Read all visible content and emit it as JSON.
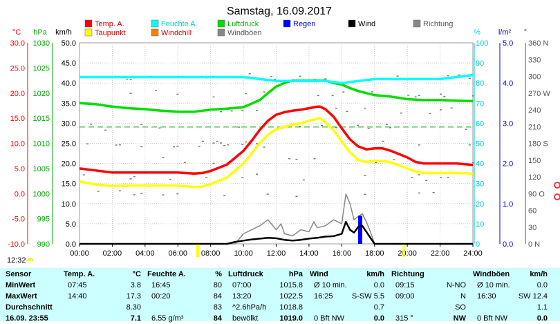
{
  "chart_data": {
    "type": "line",
    "title": "Samstag, 16.09.2017",
    "x_ticks": [
      "00:00",
      "02:00",
      "04:00",
      "06:00",
      "08:00",
      "10:00",
      "12:00",
      "14:00",
      "16:00",
      "18:00",
      "20:00",
      "22:00",
      "24:00"
    ],
    "axes": {
      "temp": {
        "unit": "°C",
        "color": "#ff0000",
        "min": -10,
        "max": 30,
        "ticks": [
          "-10.0",
          "-5.0",
          "0.0",
          "5.0",
          "10.0",
          "15.0",
          "20.0",
          "25.0",
          "30.0"
        ]
      },
      "pressure": {
        "unit": "hPa",
        "color": "#00aa00",
        "min": 990,
        "max": 1030,
        "ticks": [
          "990",
          "995",
          "1000",
          "1005",
          "1010",
          "1015",
          "1020",
          "1025",
          "1030"
        ]
      },
      "wind": {
        "unit": "km/h",
        "color": "#000000",
        "min": 0,
        "max": 50,
        "ticks": [
          "0.0",
          "5.0",
          "10.0",
          "15.0",
          "20.0",
          "25.0",
          "30.0",
          "35.0",
          "40.0",
          "45.0",
          "50.0"
        ]
      },
      "humidity": {
        "unit": "%",
        "color": "#00cccc",
        "min": 0,
        "max": 100,
        "ticks": [
          "0",
          "10",
          "20",
          "30",
          "40",
          "50",
          "60",
          "70",
          "80",
          "90",
          "100"
        ]
      },
      "rain": {
        "unit": "l/m²",
        "color": "#0000cc",
        "min": 0,
        "max": 5,
        "ticks": [
          "0.0",
          "1.0",
          "2.0",
          "3.0",
          "4.0",
          "5.0"
        ]
      },
      "direction": {
        "unit": "°",
        "color": "#555555",
        "min": 0,
        "max": 360,
        "ticks": [
          "0 N",
          "30",
          "60",
          "90 O",
          "120",
          "150",
          "180 S",
          "210",
          "240",
          "270 W",
          "300",
          "330",
          "360 N"
        ]
      }
    },
    "legend": [
      {
        "name": "Temp. A.",
        "color": "#ff0000"
      },
      {
        "name": "Feuchte A.",
        "color": "#00ffff"
      },
      {
        "name": "Luftdruck",
        "color": "#00dd00"
      },
      {
        "name": "Regen",
        "color": "#0000ff"
      },
      {
        "name": "Wind",
        "color": "#000000"
      },
      {
        "name": "Richtung",
        "color": "#888888"
      },
      {
        "name": "Taupunkt",
        "color": "#ffff00"
      },
      {
        "name": "Windchill",
        "color": "#ff8000"
      },
      {
        "name": "Windböen",
        "color": "#888888"
      }
    ],
    "series": [
      {
        "name": "Temp. A.",
        "axis": "temp",
        "color": "#ff0000",
        "x": [
          0,
          1,
          2,
          3,
          4,
          5,
          6,
          7,
          7.5,
          8,
          9,
          10,
          10.5,
          11,
          11.5,
          12,
          12.5,
          13,
          13.5,
          14,
          14.5,
          14.67,
          15,
          15.5,
          16,
          16.5,
          17,
          17.5,
          18,
          18.5,
          19,
          20,
          20.5,
          21,
          22,
          23,
          24
        ],
        "y": [
          5.0,
          4.6,
          4.2,
          4.2,
          4.2,
          4.2,
          4.2,
          4.0,
          4.1,
          4.5,
          5.8,
          8.5,
          10.5,
          12.7,
          14.5,
          15.7,
          16.2,
          16.5,
          16.7,
          17.0,
          17.3,
          17.3,
          16.8,
          15.3,
          13.0,
          10.8,
          9.4,
          8.8,
          9.0,
          9.0,
          8.5,
          7.2,
          6.3,
          6.0,
          6.0,
          6.0,
          5.7
        ]
      },
      {
        "name": "Taupunkt",
        "axis": "temp",
        "color": "#ffff00",
        "x": [
          0,
          1,
          2,
          3,
          4,
          5,
          6,
          7,
          7.5,
          8,
          9,
          10,
          10.5,
          11,
          11.5,
          12,
          12.5,
          13,
          13.5,
          14,
          14.5,
          14.67,
          15,
          15.5,
          16,
          16.5,
          17,
          17.5,
          18,
          18.5,
          19,
          20,
          20.5,
          21,
          22,
          23,
          24
        ],
        "y": [
          2.4,
          1.8,
          1.5,
          1.6,
          1.6,
          1.6,
          1.6,
          1.3,
          1.4,
          1.9,
          3.2,
          6.0,
          8.0,
          10.0,
          11.7,
          12.8,
          13.3,
          13.7,
          14.0,
          14.5,
          14.9,
          15.0,
          14.2,
          12.6,
          10.4,
          8.2,
          6.7,
          6.3,
          6.5,
          6.5,
          6.2,
          5.0,
          4.4,
          4.1,
          4.1,
          4.1,
          4.0
        ]
      },
      {
        "name": "Feuchte A.",
        "axis": "humidity",
        "color": "#00ffff",
        "x": [
          0,
          1,
          2,
          3,
          4,
          5,
          6,
          7,
          8,
          9,
          10,
          11,
          12,
          13,
          14,
          15,
          16,
          17,
          18,
          19,
          20,
          21,
          22,
          23,
          24
        ],
        "y": [
          83,
          83,
          83,
          83,
          83,
          83,
          83,
          83,
          83,
          83,
          83,
          82,
          81,
          81,
          81,
          81,
          80,
          81,
          82,
          82,
          82,
          82,
          82,
          83,
          84
        ]
      },
      {
        "name": "Luftdruck",
        "axis": "pressure",
        "color": "#00dd00",
        "x": [
          0,
          1,
          2,
          3,
          4,
          5,
          6,
          7,
          8,
          9,
          10,
          11,
          11.5,
          12,
          12.5,
          13,
          14,
          15,
          15.5,
          16,
          16.5,
          17,
          18,
          19,
          20,
          21,
          22,
          23,
          24
        ],
        "y": [
          1018.0,
          1017.8,
          1017.3,
          1017.0,
          1016.8,
          1016.5,
          1016.3,
          1016.3,
          1016.7,
          1016.9,
          1017.2,
          1018.6,
          1020.0,
          1021.3,
          1022.0,
          1022.5,
          1022.5,
          1022.5,
          1022.0,
          1021.7,
          1021.0,
          1020.4,
          1019.6,
          1019.3,
          1018.8,
          1018.6,
          1018.6,
          1018.5,
          1018.4
        ]
      },
      {
        "name": "Wind",
        "axis": "wind",
        "color": "#000000",
        "x": [
          0,
          8,
          9,
          9.5,
          10,
          10.5,
          11,
          11.5,
          12,
          12.5,
          13,
          13.5,
          14,
          14.5,
          15,
          15.5,
          16,
          16.25,
          16.5,
          16.75,
          17,
          17.25,
          17.5,
          17.75,
          18,
          24
        ],
        "y": [
          0,
          0,
          0,
          0.5,
          0.8,
          1.1,
          1.3,
          1.5,
          1.4,
          1.0,
          0.8,
          1.0,
          1.3,
          1.5,
          1.8,
          1.9,
          2.5,
          5.5,
          3.5,
          2.8,
          4.2,
          4.5,
          3.0,
          1.5,
          0,
          0
        ]
      },
      {
        "name": "Windböen",
        "axis": "wind",
        "color": "#888888",
        "x": [
          0,
          9.5,
          10,
          10.5,
          11,
          11.5,
          11.7,
          12,
          12.3,
          12.5,
          13,
          13.5,
          14,
          14.3,
          14.5,
          15,
          15.5,
          16,
          16.25,
          16.5,
          16.75,
          17,
          17.25,
          17.5,
          17.75,
          18,
          24
        ],
        "y": [
          0,
          0,
          2.5,
          3.5,
          4.5,
          6.0,
          5.0,
          3.5,
          5.0,
          2.5,
          2.0,
          3.5,
          3.0,
          5.5,
          4.0,
          4.5,
          6.0,
          5.0,
          12.4,
          10.0,
          6.0,
          6.8,
          7.5,
          5.5,
          3.0,
          0,
          0
        ]
      },
      {
        "name": "Regen",
        "axis": "rain",
        "color": "#0000ff",
        "x": [
          17.0,
          17.25
        ],
        "y": [
          0.7,
          0.7
        ]
      }
    ],
    "reference_lines": [
      {
        "axis": "pressure",
        "value": 1013.25,
        "color": "#00aa00",
        "style": "dashed"
      }
    ]
  },
  "footer": {
    "time": "12:32"
  },
  "stats": {
    "sensor": {
      "header": "Sensor",
      "rows": [
        "MinWert",
        "MaxWert",
        "Durchschnitt",
        "16.09. 23:55"
      ]
    },
    "temp": {
      "header": "Temp. A.",
      "unit": "°C",
      "rows": [
        [
          "07:45",
          "3.8"
        ],
        [
          "14:40",
          "17.3"
        ],
        [
          "",
          "8.30"
        ],
        [
          "",
          "7.1"
        ]
      ]
    },
    "feuchte": {
      "header": "Feuchte A.",
      "unit": "%",
      "rows": [
        [
          "16:45",
          "80"
        ],
        [
          "00:20",
          "84"
        ],
        [
          "",
          "83"
        ],
        [
          "6.55 g/m³",
          "84"
        ]
      ]
    },
    "luftdruck": {
      "header": "Luftdruck",
      "unit": "hPa",
      "rows": [
        [
          "07:00",
          "1015.8"
        ],
        [
          "13:20",
          "1022.5"
        ],
        [
          "^2.6hPa/h",
          "1018.8"
        ],
        [
          "bewölkt",
          "1019.0"
        ]
      ]
    },
    "wind": {
      "header": "Wind",
      "unit": "km/h",
      "rows": [
        [
          "Ø 10 min.",
          "0.0"
        ],
        [
          "16:25",
          "S-SW 5.5"
        ],
        [
          "",
          "0.7"
        ],
        [
          "0 Bft NW",
          "0.0"
        ]
      ]
    },
    "richtung": {
      "header": "Richtung",
      "rows": [
        [
          "09:15",
          "N-NO"
        ],
        [
          "09:00",
          "N"
        ],
        [
          "",
          "SO"
        ],
        [
          "315 °",
          "NW"
        ]
      ]
    },
    "windboen": {
      "header": "Windböen",
      "unit": "km/h",
      "rows": [
        [
          "Ø 10 min.",
          "0.0"
        ],
        [
          "16:30",
          "SW 12.4"
        ],
        [
          "",
          "1.1"
        ],
        [
          "0 Bft NW",
          "0.0"
        ]
      ]
    }
  }
}
